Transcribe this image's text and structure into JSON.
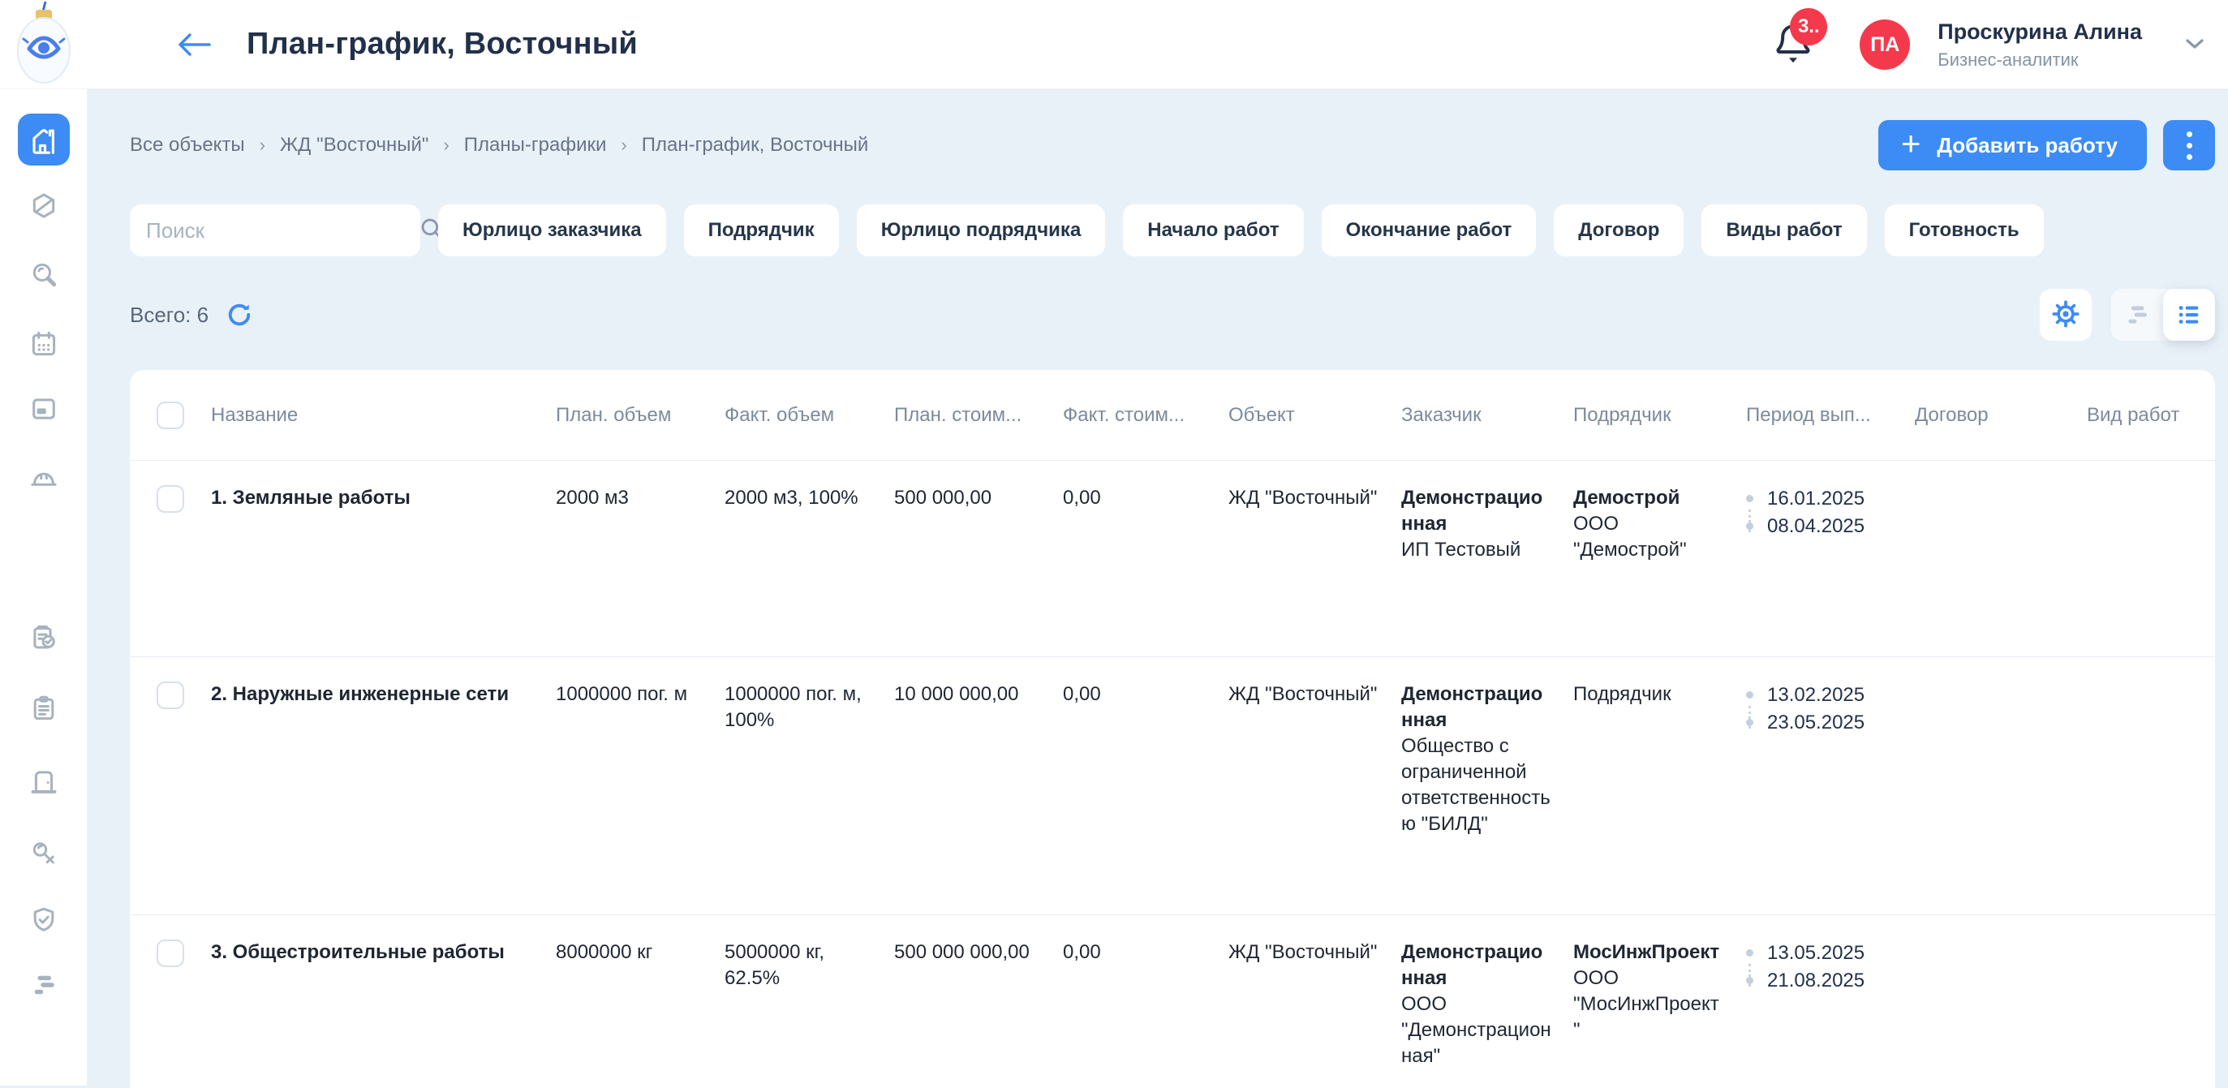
{
  "header": {
    "title": "План-график, Восточный",
    "notification_badge": "3..",
    "user": {
      "initials": "ПА",
      "name": "Проскурина Алина",
      "role": "Бизнес-аналитик"
    }
  },
  "breadcrumbs": [
    "Все объекты",
    "ЖД \"Восточный\"",
    "Планы-графики",
    "План-график, Восточный"
  ],
  "actions": {
    "add_label": "Добавить работу"
  },
  "filters": {
    "search_placeholder": "Поиск",
    "chips": [
      "Юрлицо заказчика",
      "Подрядчик",
      "Юрлицо подрядчика",
      "Начало работ",
      "Окончание работ",
      "Договор",
      "Виды работ",
      "Готовность"
    ]
  },
  "toolbar": {
    "total_label": "Всего: 6"
  },
  "sidebar": {
    "items": [
      {
        "icon": "home",
        "active": true
      },
      {
        "icon": "hexagon-slash"
      },
      {
        "icon": "search"
      },
      {
        "icon": "calendar"
      },
      {
        "icon": "panel"
      },
      {
        "icon": "helmet"
      },
      {
        "icon": "clipboard-check"
      },
      {
        "icon": "clipboard"
      },
      {
        "icon": "door"
      },
      {
        "icon": "key"
      },
      {
        "icon": "shield-check"
      },
      {
        "icon": "gantt"
      }
    ]
  },
  "table": {
    "columns": [
      "Название",
      "План. объем",
      "Факт. объем",
      "План. стоим...",
      "Факт. стоим...",
      "Объект",
      "Заказчик",
      "Подрядчик",
      "Период вып...",
      "Договор",
      "Вид работ"
    ],
    "rows": [
      {
        "name": "1. Земляные работы",
        "plan_volume": "2000 м3",
        "fact_volume": "2000 м3, 100%",
        "plan_cost": "500 000,00",
        "fact_cost": "0,00",
        "object": "ЖД \"Восточный\"",
        "customer": {
          "title": "Демонстрационная",
          "subtitle": "ИП Тестовый"
        },
        "contractor": {
          "title": "Демострой",
          "subtitle": "ООО \"Демострой\""
        },
        "period": {
          "start": "16.01.2025",
          "end": "08.04.2025"
        },
        "contract": "",
        "work_type": ""
      },
      {
        "name": "2. Наружные инженерные сети",
        "plan_volume": "1000000 пог. м",
        "fact_volume": "1000000 пог. м, 100%",
        "plan_cost": "10 000 000,00",
        "fact_cost": "0,00",
        "object": "ЖД \"Восточный\"",
        "customer": {
          "title": "Демонстрационная",
          "subtitle": "Общество с ограниченной ответственностью \"БИЛД\""
        },
        "contractor": {
          "title": "",
          "subtitle": "Подрядчик"
        },
        "period": {
          "start": "13.02.2025",
          "end": "23.05.2025"
        },
        "contract": "",
        "work_type": ""
      },
      {
        "name": "3. Общестроительные работы",
        "plan_volume": "8000000 кг",
        "fact_volume": "5000000 кг, 62.5%",
        "plan_cost": "500 000 000,00",
        "fact_cost": "0,00",
        "object": "ЖД \"Восточный\"",
        "customer": {
          "title": "Демонстрационная",
          "subtitle": "ООО \"Демонстрационная\""
        },
        "contractor": {
          "title": "МосИнжПроект",
          "subtitle": "ООО \"МосИнжПроект\""
        },
        "period": {
          "start": "13.05.2025",
          "end": "21.08.2025"
        },
        "contract": "",
        "work_type": ""
      }
    ]
  },
  "colors": {
    "accent": "#3D8BF5",
    "badge": "#F5394C",
    "background": "#E9F1F8",
    "text_dark": "#22304A"
  }
}
